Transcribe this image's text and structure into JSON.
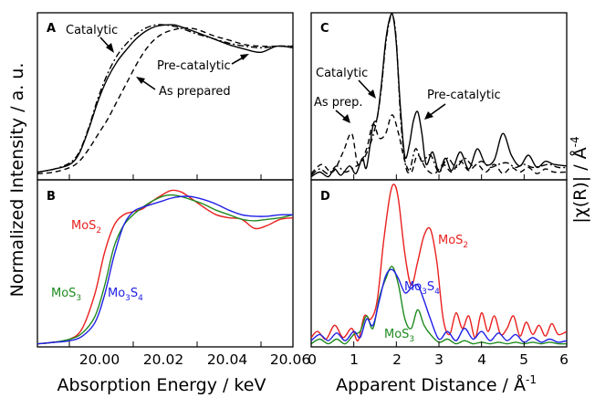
{
  "figure": {
    "ylabel_left": "Normalized Intensity / a. u.",
    "ylabel_right": "|χ(R)| / Å",
    "ylabel_right_sup": "-4",
    "xlabel_left": "Absorption Energy / keV",
    "xlabel_right": "Apparent Distance / Å",
    "xlabel_right_sup": "-1"
  },
  "colors": {
    "red": "#e8201f",
    "green": "#1f8a1f",
    "blue": "#1f1fe6",
    "black": "#000000"
  },
  "chart_data": [
    {
      "panel": "A",
      "type": "line",
      "xlim": [
        19.99,
        20.07
      ],
      "ylim": [
        0,
        1.1
      ],
      "annotations": {
        "catalytic": "Catalytic",
        "pre_catalytic": "Pre-catalytic",
        "as_prepared": "As prepared"
      },
      "series": [
        {
          "name": "Catalytic",
          "dash": "solid",
          "x": [
            19.99,
            19.995,
            20.0,
            20.003,
            20.006,
            20.009,
            20.012,
            20.015,
            20.018,
            20.021,
            20.024,
            20.027,
            20.03,
            20.033,
            20.036,
            20.04,
            20.045,
            20.05,
            20.055,
            20.06,
            20.065,
            20.07
          ],
          "y": [
            0.05,
            0.07,
            0.1,
            0.17,
            0.33,
            0.52,
            0.67,
            0.78,
            0.86,
            0.93,
            0.98,
            1.01,
            1.02,
            1.02,
            1.0,
            0.97,
            0.93,
            0.89,
            0.86,
            0.84,
            0.88,
            0.87
          ]
        },
        {
          "name": "Pre-catalytic",
          "dash": "dashdot",
          "x": [
            19.99,
            19.995,
            20.0,
            20.003,
            20.006,
            20.009,
            20.012,
            20.015,
            20.018,
            20.021,
            20.024,
            20.027,
            20.03,
            20.033,
            20.036,
            20.04,
            20.045,
            20.05,
            20.055,
            20.06,
            20.065,
            20.07
          ],
          "y": [
            0.05,
            0.07,
            0.11,
            0.18,
            0.34,
            0.54,
            0.7,
            0.82,
            0.9,
            0.96,
            1.0,
            1.02,
            1.02,
            1.01,
            0.99,
            0.96,
            0.93,
            0.9,
            0.88,
            0.87,
            0.88,
            0.88
          ]
        },
        {
          "name": "As prepared",
          "dash": "dashed",
          "x": [
            19.99,
            19.995,
            20.0,
            20.003,
            20.006,
            20.009,
            20.012,
            20.015,
            20.018,
            20.021,
            20.024,
            20.027,
            20.03,
            20.033,
            20.036,
            20.04,
            20.045,
            20.05,
            20.055,
            20.06,
            20.065,
            20.07
          ],
          "y": [
            0.04,
            0.05,
            0.08,
            0.12,
            0.2,
            0.3,
            0.4,
            0.52,
            0.64,
            0.76,
            0.86,
            0.93,
            0.97,
            0.99,
            1.0,
            0.99,
            0.95,
            0.92,
            0.89,
            0.88,
            0.88,
            0.88
          ]
        }
      ]
    },
    {
      "panel": "B",
      "type": "line",
      "xlim": [
        19.99,
        20.07
      ],
      "ylim": [
        0,
        1.1
      ],
      "xticks": [
        "20.00",
        "20.02",
        "20.04",
        "20.06"
      ],
      "xtick_values": [
        20.0,
        20.02,
        20.04,
        20.06
      ],
      "series": [
        {
          "name": "MoS",
          "name_sub": "2",
          "color": "red",
          "x": [
            19.99,
            19.995,
            20.0,
            20.004,
            20.008,
            20.011,
            20.014,
            20.017,
            20.02,
            20.023,
            20.026,
            20.029,
            20.032,
            20.035,
            20.038,
            20.042,
            20.046,
            20.05,
            20.054,
            20.058,
            20.062,
            20.066,
            20.07
          ],
          "y": [
            0.02,
            0.03,
            0.05,
            0.12,
            0.35,
            0.62,
            0.8,
            0.87,
            0.89,
            0.91,
            0.96,
            1.0,
            1.03,
            1.02,
            0.98,
            0.92,
            0.87,
            0.85,
            0.84,
            0.78,
            0.8,
            0.84,
            0.85
          ]
        },
        {
          "name": "MoS",
          "name_sub": "3",
          "color": "green",
          "x": [
            19.99,
            19.995,
            20.0,
            20.004,
            20.008,
            20.011,
            20.014,
            20.017,
            20.02,
            20.023,
            20.026,
            20.029,
            20.032,
            20.035,
            20.038,
            20.042,
            20.046,
            20.05,
            20.054,
            20.058,
            20.062,
            20.066,
            20.07
          ],
          "y": [
            0.02,
            0.03,
            0.05,
            0.09,
            0.2,
            0.4,
            0.66,
            0.8,
            0.87,
            0.92,
            0.96,
            0.99,
            1.0,
            0.99,
            0.97,
            0.94,
            0.9,
            0.87,
            0.84,
            0.83,
            0.84,
            0.85,
            0.87
          ]
        },
        {
          "name": "Mo",
          "name_sub": "3",
          "name_tail": "S",
          "name_tail_sub": "4",
          "color": "blue",
          "x": [
            19.99,
            19.995,
            20.0,
            20.004,
            20.008,
            20.011,
            20.014,
            20.017,
            20.02,
            20.023,
            20.026,
            20.029,
            20.032,
            20.035,
            20.038,
            20.042,
            20.046,
            20.05,
            20.054,
            20.058,
            20.062,
            20.066,
            20.07
          ],
          "y": [
            0.02,
            0.03,
            0.04,
            0.07,
            0.16,
            0.34,
            0.6,
            0.8,
            0.89,
            0.92,
            0.94,
            0.96,
            0.98,
            0.99,
            0.99,
            0.97,
            0.94,
            0.9,
            0.87,
            0.86,
            0.86,
            0.87,
            0.87
          ]
        }
      ]
    },
    {
      "panel": "C",
      "type": "line",
      "xlim": [
        0,
        6
      ],
      "ylim": [
        0,
        1.08
      ],
      "annotations": {
        "catalytic": "Catalytic",
        "as_prep": "As prep.",
        "pre_catalytic": "Pre-catalytic"
      },
      "series": [
        {
          "name": "Catalytic",
          "dash": "solid",
          "x": [
            0.0,
            0.2,
            0.4,
            0.55,
            0.7,
            0.9,
            1.05,
            1.2,
            1.3,
            1.45,
            1.55,
            1.65,
            1.75,
            1.85,
            1.92,
            2.0,
            2.1,
            2.2,
            2.3,
            2.4,
            2.5,
            2.6,
            2.7,
            2.85,
            3.0,
            3.15,
            3.3,
            3.5,
            3.7,
            3.9,
            4.1,
            4.3,
            4.5,
            4.7,
            4.9,
            5.1,
            5.3,
            5.5,
            5.7,
            6.0
          ],
          "y": [
            0.02,
            0.05,
            0.02,
            0.07,
            0.03,
            0.09,
            0.04,
            0.14,
            0.08,
            0.35,
            0.4,
            0.62,
            0.9,
            1.05,
            1.06,
            0.88,
            0.45,
            0.15,
            0.22,
            0.38,
            0.44,
            0.3,
            0.1,
            0.18,
            0.05,
            0.14,
            0.06,
            0.18,
            0.07,
            0.2,
            0.1,
            0.13,
            0.3,
            0.16,
            0.09,
            0.16,
            0.08,
            0.12,
            0.1,
            0.09
          ]
        },
        {
          "name": "Pre-catalytic",
          "dash": "dashdot",
          "x": [
            0.0,
            0.2,
            0.4,
            0.6,
            0.8,
            1.0,
            1.2,
            1.4,
            1.55,
            1.65,
            1.75,
            1.85,
            1.92,
            2.0,
            2.1,
            2.2,
            2.3,
            2.45,
            2.6,
            2.8,
            3.0,
            3.2,
            3.4,
            3.6,
            3.8,
            4.0,
            4.2,
            4.4,
            4.6,
            4.8,
            5.0,
            5.2,
            5.4,
            5.6,
            5.8,
            6.0
          ],
          "y": [
            0.03,
            0.07,
            0.04,
            0.09,
            0.05,
            0.08,
            0.12,
            0.24,
            0.4,
            0.6,
            0.88,
            1.04,
            1.06,
            0.9,
            0.4,
            0.12,
            0.05,
            0.2,
            0.12,
            0.16,
            0.05,
            0.14,
            0.08,
            0.14,
            0.09,
            0.12,
            0.08,
            0.1,
            0.11,
            0.08,
            0.1,
            0.08,
            0.09,
            0.1,
            0.08,
            0.08
          ]
        },
        {
          "name": "As prep.",
          "dash": "dashed",
          "x": [
            0.0,
            0.25,
            0.5,
            0.75,
            0.95,
            1.1,
            1.3,
            1.45,
            1.6,
            1.75,
            1.9,
            2.05,
            2.2,
            2.35,
            2.5,
            2.7,
            2.9,
            3.1,
            3.3,
            3.5,
            3.7,
            3.9,
            4.1,
            4.3,
            4.5,
            4.7,
            4.9,
            5.1,
            5.3,
            5.5,
            5.7,
            6.0
          ],
          "y": [
            0.04,
            0.1,
            0.05,
            0.18,
            0.3,
            0.1,
            0.2,
            0.36,
            0.27,
            0.3,
            0.42,
            0.3,
            0.12,
            0.05,
            0.16,
            0.07,
            0.04,
            0.1,
            0.05,
            0.12,
            0.06,
            0.1,
            0.05,
            0.1,
            0.04,
            0.08,
            0.05,
            0.08,
            0.04,
            0.07,
            0.05,
            0.05
          ]
        }
      ]
    },
    {
      "panel": "D",
      "type": "line",
      "xlim": [
        0,
        6
      ],
      "ylim": [
        0,
        1.08
      ],
      "xticks": [
        "0",
        "1",
        "2",
        "3",
        "4",
        "5",
        "6"
      ],
      "xtick_values": [
        0,
        1,
        2,
        3,
        4,
        5,
        6
      ],
      "series": [
        {
          "name": "MoS",
          "name_sub": "2",
          "color": "red",
          "x": [
            0.0,
            0.15,
            0.35,
            0.55,
            0.75,
            0.95,
            1.1,
            1.25,
            1.4,
            1.55,
            1.7,
            1.85,
            1.95,
            2.05,
            2.2,
            2.35,
            2.5,
            2.65,
            2.8,
            2.95,
            3.1,
            3.25,
            3.4,
            3.55,
            3.7,
            3.85,
            4.0,
            4.15,
            4.3,
            4.45,
            4.6,
            4.75,
            4.9,
            5.05,
            5.2,
            5.35,
            5.5,
            5.65,
            5.8,
            6.0
          ],
          "y": [
            0.06,
            0.1,
            0.05,
            0.14,
            0.06,
            0.12,
            0.04,
            0.2,
            0.18,
            0.3,
            0.68,
            0.98,
            1.05,
            0.95,
            0.6,
            0.4,
            0.55,
            0.72,
            0.76,
            0.55,
            0.18,
            0.08,
            0.22,
            0.12,
            0.2,
            0.06,
            0.22,
            0.1,
            0.2,
            0.08,
            0.12,
            0.2,
            0.07,
            0.16,
            0.08,
            0.14,
            0.07,
            0.15,
            0.08,
            0.1
          ]
        },
        {
          "name": "MoS",
          "name_sub": "3",
          "color": "green",
          "x": [
            0.0,
            0.2,
            0.4,
            0.6,
            0.8,
            1.0,
            1.15,
            1.3,
            1.45,
            1.6,
            1.75,
            1.9,
            2.05,
            2.2,
            2.35,
            2.5,
            2.65,
            2.8,
            3.0,
            3.2,
            3.4,
            3.6,
            3.8,
            4.0,
            4.2,
            4.4,
            4.6,
            4.8,
            5.0,
            5.2,
            5.4,
            5.6,
            5.8,
            6.0
          ],
          "y": [
            0.02,
            0.05,
            0.02,
            0.05,
            0.02,
            0.08,
            0.1,
            0.2,
            0.12,
            0.32,
            0.44,
            0.52,
            0.4,
            0.18,
            0.12,
            0.24,
            0.14,
            0.08,
            0.03,
            0.05,
            0.02,
            0.04,
            0.02,
            0.03,
            0.02,
            0.03,
            0.02,
            0.03,
            0.02,
            0.03,
            0.02,
            0.03,
            0.02,
            0.02
          ]
        },
        {
          "name": "Mo",
          "name_sub": "3",
          "name_tail": "S",
          "name_tail_sub": "4",
          "color": "blue",
          "x": [
            0.0,
            0.2,
            0.4,
            0.6,
            0.8,
            1.0,
            1.15,
            1.3,
            1.45,
            1.6,
            1.75,
            1.9,
            2.05,
            2.2,
            2.35,
            2.5,
            2.65,
            2.8,
            3.0,
            3.2,
            3.4,
            3.6,
            3.8,
            4.0,
            4.2,
            4.4,
            4.6,
            4.8,
            5.0,
            5.2,
            5.4,
            5.6,
            5.8,
            6.0
          ],
          "y": [
            0.04,
            0.08,
            0.04,
            0.09,
            0.04,
            0.1,
            0.06,
            0.18,
            0.14,
            0.3,
            0.46,
            0.5,
            0.44,
            0.35,
            0.38,
            0.4,
            0.3,
            0.18,
            0.05,
            0.1,
            0.04,
            0.12,
            0.05,
            0.1,
            0.04,
            0.09,
            0.04,
            0.08,
            0.03,
            0.06,
            0.03,
            0.05,
            0.03,
            0.04
          ]
        }
      ]
    }
  ]
}
